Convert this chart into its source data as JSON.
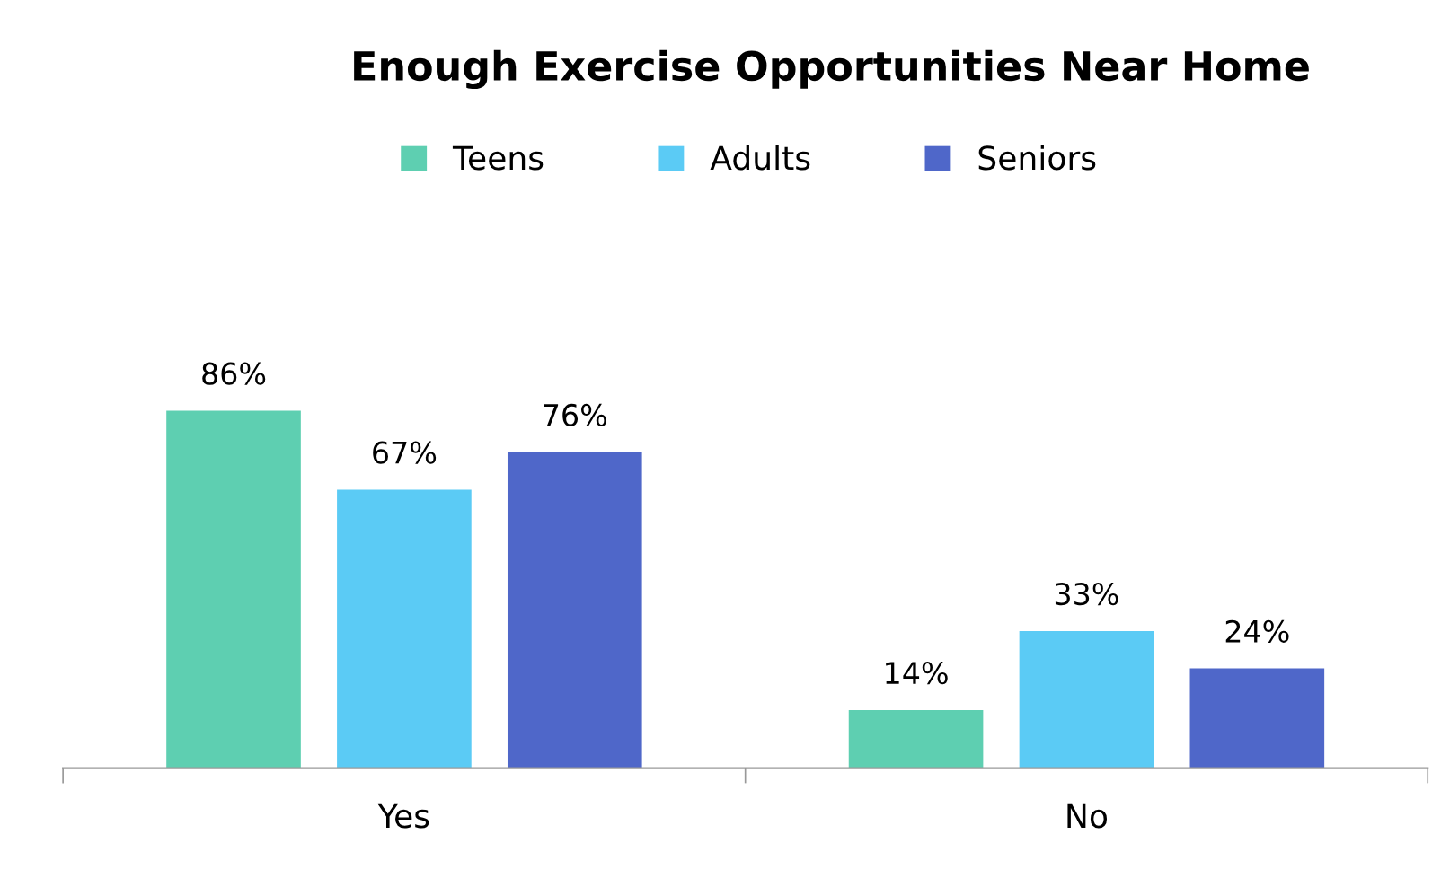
{
  "chart_data": {
    "type": "bar",
    "title": "Enough Exercise Opportunities Near Home",
    "categories": [
      "Yes",
      "No"
    ],
    "series": [
      {
        "name": "Teens",
        "color": "#5ecfb1",
        "values": [
          86,
          14
        ],
        "value_labels": [
          "86%",
          "14%"
        ]
      },
      {
        "name": "Adults",
        "color": "#5bcbf5",
        "values": [
          67,
          33
        ],
        "value_labels": [
          "67%",
          "33%"
        ]
      },
      {
        "name": "Seniors",
        "color": "#4f67c9",
        "values": [
          76,
          24
        ],
        "value_labels": [
          "76%",
          "24%"
        ]
      }
    ],
    "grid": false,
    "legend": "top"
  }
}
